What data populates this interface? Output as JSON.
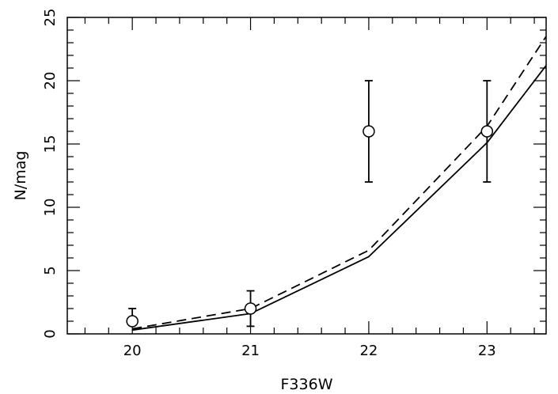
{
  "chart_data": {
    "type": "line",
    "title": "",
    "xlabel": "F336W",
    "ylabel": "N/mag",
    "xlim": [
      19.45,
      23.5
    ],
    "ylim": [
      0,
      25
    ],
    "x_ticks": [
      20,
      21,
      22,
      23
    ],
    "x_tick_labels": [
      "20",
      "21",
      "22",
      "23"
    ],
    "x_minor_step": 0.2,
    "y_ticks": [
      0,
      5,
      10,
      15,
      20,
      25
    ],
    "y_tick_labels": [
      "0",
      "5",
      "10",
      "15",
      "20",
      "25"
    ],
    "y_minor_step": 1,
    "grid": false,
    "series": [
      {
        "style": "solid",
        "x": [
          20,
          21,
          22,
          23,
          23.5
        ],
        "y": [
          0.3,
          1.6,
          6.1,
          15.1,
          21.2
        ]
      },
      {
        "style": "dashed",
        "x": [
          20,
          21,
          22,
          23,
          23.5
        ],
        "y": [
          0.4,
          2.0,
          6.6,
          16.4,
          23.5
        ]
      }
    ],
    "points": {
      "marker": "open-circle",
      "x": [
        20,
        21,
        22,
        23
      ],
      "y": [
        1,
        2,
        16,
        16
      ],
      "y_err_low": [
        0,
        1.4,
        4,
        4
      ],
      "y_err_high": [
        1,
        1.4,
        4,
        4
      ]
    }
  }
}
